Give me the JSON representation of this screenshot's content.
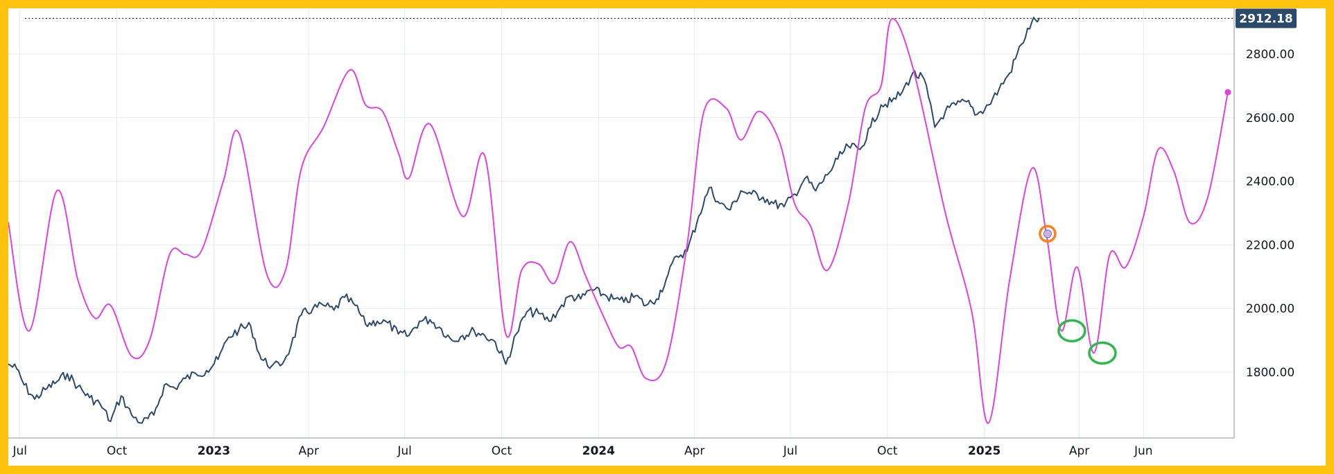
{
  "chart_data": {
    "type": "line",
    "title": "",
    "xlabel": "",
    "ylabel": "",
    "x_range": [
      "2022-06-20",
      "2025-08-26"
    ],
    "ylim": [
      1610,
      2950
    ],
    "y_ticks": [
      1800,
      2000,
      2200,
      2400,
      2600,
      2800
    ],
    "y_tick_labels": [
      "1800.00",
      "2000.00",
      "2200.00",
      "2400.00",
      "2600.00",
      "2800.00"
    ],
    "x_ticks": [
      {
        "date": "2022-07-01",
        "label": "Jul",
        "bold": false
      },
      {
        "date": "2022-10-01",
        "label": "Oct",
        "bold": false
      },
      {
        "date": "2023-01-01",
        "label": "2023",
        "bold": true
      },
      {
        "date": "2023-04-01",
        "label": "Apr",
        "bold": false
      },
      {
        "date": "2023-07-01",
        "label": "Jul",
        "bold": false
      },
      {
        "date": "2023-10-01",
        "label": "Oct",
        "bold": false
      },
      {
        "date": "2024-01-01",
        "label": "2024",
        "bold": true
      },
      {
        "date": "2024-04-01",
        "label": "Apr",
        "bold": false
      },
      {
        "date": "2024-07-01",
        "label": "Jul",
        "bold": false
      },
      {
        "date": "2024-10-01",
        "label": "Oct",
        "bold": false
      },
      {
        "date": "2025-01-01",
        "label": "2025",
        "bold": true
      },
      {
        "date": "2025-04-01",
        "label": "Apr",
        "bold": false
      },
      {
        "date": "2025-06-01",
        "label": "Jun",
        "bold": false
      }
    ],
    "grid": true,
    "last_price": {
      "value": 2912.18,
      "label": "2912.18",
      "color": "#2a4a6b"
    },
    "series": [
      {
        "color": "#2a4a6b",
        "line_width": 2,
        "jitter": 14,
        "points": [
          [
            "2022-06-20",
            1825
          ],
          [
            "2022-06-28",
            1810
          ],
          [
            "2022-07-05",
            1760
          ],
          [
            "2022-07-15",
            1715
          ],
          [
            "2022-07-25",
            1745
          ],
          [
            "2022-08-05",
            1770
          ],
          [
            "2022-08-15",
            1795
          ],
          [
            "2022-08-25",
            1755
          ],
          [
            "2022-09-05",
            1720
          ],
          [
            "2022-09-15",
            1700
          ],
          [
            "2022-09-25",
            1645
          ],
          [
            "2022-10-05",
            1725
          ],
          [
            "2022-10-15",
            1665
          ],
          [
            "2022-10-25",
            1640
          ],
          [
            "2022-11-05",
            1665
          ],
          [
            "2022-11-15",
            1760
          ],
          [
            "2022-11-25",
            1750
          ],
          [
            "2022-12-05",
            1780
          ],
          [
            "2022-12-15",
            1795
          ],
          [
            "2022-12-25",
            1805
          ],
          [
            "2023-01-05",
            1840
          ],
          [
            "2023-01-15",
            1910
          ],
          [
            "2023-01-25",
            1935
          ],
          [
            "2023-02-05",
            1945
          ],
          [
            "2023-02-15",
            1840
          ],
          [
            "2023-02-25",
            1820
          ],
          [
            "2023-03-05",
            1820
          ],
          [
            "2023-03-15",
            1880
          ],
          [
            "2023-03-25",
            1980
          ],
          [
            "2023-04-05",
            2000
          ],
          [
            "2023-04-15",
            2010
          ],
          [
            "2023-04-25",
            1995
          ],
          [
            "2023-05-05",
            2035
          ],
          [
            "2023-05-15",
            2010
          ],
          [
            "2023-05-25",
            1950
          ],
          [
            "2023-06-05",
            1960
          ],
          [
            "2023-06-15",
            1955
          ],
          [
            "2023-06-25",
            1920
          ],
          [
            "2023-07-05",
            1915
          ],
          [
            "2023-07-15",
            1960
          ],
          [
            "2023-07-25",
            1965
          ],
          [
            "2023-08-05",
            1935
          ],
          [
            "2023-08-15",
            1900
          ],
          [
            "2023-08-25",
            1915
          ],
          [
            "2023-09-05",
            1930
          ],
          [
            "2023-09-15",
            1915
          ],
          [
            "2023-09-25",
            1895
          ],
          [
            "2023-10-05",
            1825
          ],
          [
            "2023-10-15",
            1920
          ],
          [
            "2023-10-25",
            1990
          ],
          [
            "2023-11-05",
            1985
          ],
          [
            "2023-11-15",
            1960
          ],
          [
            "2023-11-25",
            2000
          ],
          [
            "2023-12-05",
            2040
          ],
          [
            "2023-12-15",
            2030
          ],
          [
            "2023-12-25",
            2060
          ],
          [
            "2024-01-05",
            2045
          ],
          [
            "2024-01-15",
            2030
          ],
          [
            "2024-01-25",
            2020
          ],
          [
            "2024-02-05",
            2040
          ],
          [
            "2024-02-15",
            2010
          ],
          [
            "2024-02-25",
            2030
          ],
          [
            "2024-03-05",
            2090
          ],
          [
            "2024-03-15",
            2165
          ],
          [
            "2024-03-25",
            2180
          ],
          [
            "2024-04-05",
            2290
          ],
          [
            "2024-04-15",
            2380
          ],
          [
            "2024-04-25",
            2330
          ],
          [
            "2024-05-05",
            2310
          ],
          [
            "2024-05-15",
            2370
          ],
          [
            "2024-05-25",
            2360
          ],
          [
            "2024-06-05",
            2350
          ],
          [
            "2024-06-15",
            2330
          ],
          [
            "2024-06-25",
            2320
          ],
          [
            "2024-07-05",
            2360
          ],
          [
            "2024-07-15",
            2410
          ],
          [
            "2024-07-25",
            2370
          ],
          [
            "2024-08-05",
            2420
          ],
          [
            "2024-08-15",
            2470
          ],
          [
            "2024-08-25",
            2510
          ],
          [
            "2024-09-05",
            2500
          ],
          [
            "2024-09-15",
            2570
          ],
          [
            "2024-09-25",
            2640
          ],
          [
            "2024-10-05",
            2650
          ],
          [
            "2024-10-15",
            2680
          ],
          [
            "2024-10-25",
            2740
          ],
          [
            "2024-11-05",
            2720
          ],
          [
            "2024-11-15",
            2570
          ],
          [
            "2024-11-25",
            2620
          ],
          [
            "2024-12-05",
            2640
          ],
          [
            "2024-12-15",
            2650
          ],
          [
            "2024-12-25",
            2610
          ],
          [
            "2025-01-05",
            2640
          ],
          [
            "2025-01-15",
            2690
          ],
          [
            "2025-01-25",
            2740
          ],
          [
            "2025-02-05",
            2830
          ],
          [
            "2025-02-15",
            2900
          ],
          [
            "2025-02-22",
            2912.18
          ]
        ]
      },
      {
        "color": "#e040e0",
        "line_width": 2,
        "jitter": 0,
        "points": [
          [
            "2022-06-20",
            2270
          ],
          [
            "2022-07-10",
            1930
          ],
          [
            "2022-08-05",
            2370
          ],
          [
            "2022-08-25",
            2090
          ],
          [
            "2022-09-10",
            1970
          ],
          [
            "2022-09-25",
            2010
          ],
          [
            "2022-10-15",
            1850
          ],
          [
            "2022-11-01",
            1900
          ],
          [
            "2022-11-20",
            2170
          ],
          [
            "2022-12-05",
            2170
          ],
          [
            "2022-12-20",
            2180
          ],
          [
            "2023-01-10",
            2400
          ],
          [
            "2023-01-25",
            2550
          ],
          [
            "2023-02-20",
            2110
          ],
          [
            "2023-03-10",
            2120
          ],
          [
            "2023-03-25",
            2440
          ],
          [
            "2023-04-15",
            2570
          ],
          [
            "2023-05-10",
            2750
          ],
          [
            "2023-05-25",
            2640
          ],
          [
            "2023-06-10",
            2620
          ],
          [
            "2023-06-25",
            2490
          ],
          [
            "2023-07-05",
            2410
          ],
          [
            "2023-07-25",
            2580
          ],
          [
            "2023-08-25",
            2290
          ],
          [
            "2023-09-15",
            2480
          ],
          [
            "2023-10-05",
            1920
          ],
          [
            "2023-10-20",
            2120
          ],
          [
            "2023-11-05",
            2140
          ],
          [
            "2023-11-20",
            2080
          ],
          [
            "2023-12-05",
            2210
          ],
          [
            "2023-12-20",
            2100
          ],
          [
            "2024-01-05",
            1980
          ],
          [
            "2024-01-20",
            1880
          ],
          [
            "2024-02-01",
            1880
          ],
          [
            "2024-02-15",
            1780
          ],
          [
            "2024-03-05",
            1830
          ],
          [
            "2024-03-25",
            2200
          ],
          [
            "2024-04-10",
            2620
          ],
          [
            "2024-05-01",
            2630
          ],
          [
            "2024-05-15",
            2530
          ],
          [
            "2024-06-01",
            2620
          ],
          [
            "2024-06-20",
            2530
          ],
          [
            "2024-07-05",
            2330
          ],
          [
            "2024-07-20",
            2260
          ],
          [
            "2024-08-05",
            2120
          ],
          [
            "2024-08-25",
            2330
          ],
          [
            "2024-09-10",
            2630
          ],
          [
            "2024-09-25",
            2700
          ],
          [
            "2024-10-05",
            2910
          ],
          [
            "2024-10-25",
            2760
          ],
          [
            "2024-11-25",
            2300
          ],
          [
            "2024-12-20",
            1990
          ],
          [
            "2025-01-05",
            1640
          ],
          [
            "2025-01-25",
            2090
          ],
          [
            "2025-02-15",
            2440
          ],
          [
            "2025-03-01",
            2230
          ],
          [
            "2025-03-15",
            1930
          ],
          [
            "2025-03-30",
            2130
          ],
          [
            "2025-04-15",
            1860
          ],
          [
            "2025-04-30",
            2170
          ],
          [
            "2025-05-15",
            2130
          ],
          [
            "2025-06-01",
            2290
          ],
          [
            "2025-06-15",
            2500
          ],
          [
            "2025-06-30",
            2430
          ],
          [
            "2025-07-15",
            2270
          ],
          [
            "2025-08-01",
            2350
          ],
          [
            "2025-08-20",
            2680
          ]
        ],
        "end_marker": [
          "2025-08-20",
          2680
        ]
      }
    ],
    "annotations": [
      {
        "type": "circle",
        "date": "2025-03-02",
        "value": 2235,
        "color": "#ff7f1a",
        "fill": "#c9b3f2"
      },
      {
        "type": "ellipse",
        "date": "2025-03-25",
        "value": 1930,
        "color": "#2db84a"
      },
      {
        "type": "ellipse",
        "date": "2025-04-23",
        "value": 1860,
        "color": "#2db84a"
      }
    ]
  }
}
